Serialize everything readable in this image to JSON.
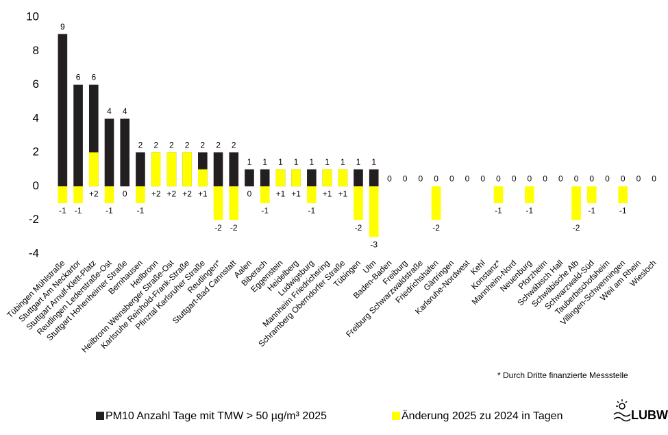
{
  "chart_data": {
    "type": "bar",
    "categories": [
      "Tübingen Mühlstraße",
      "Stuttgart Am Neckartor",
      "Stuttgart Arnulf-Klett-Platz",
      "Reutlingen Lederstraße-Ost",
      "Stuttgart Hohenheimer Straße",
      "Bernhausen",
      "Heilbronn",
      "Heilbronn Weinsberger Straße-Ost",
      "Karlsruhe Reinhold-Frank-Straße",
      "Pfinztal Karlsruher Straße",
      "Reutlingen*",
      "Stuttgart-Bad Cannstatt",
      "Aalen",
      "Biberach",
      "Eggenstein",
      "Heidelberg",
      "Ludwigsburg",
      "Mannheim Friedrichsring",
      "Schramberg Oberndorfer Straße",
      "Tübingen",
      "Ulm",
      "Baden-Baden",
      "Freiburg",
      "Freiburg Schwarzwaldstraße",
      "Friedrichshafen",
      "Gärtringen",
      "Karlsruhe-Nordwest",
      "Kehl",
      "Konstanz*",
      "Mannheim-Nord",
      "Neuenburg",
      "Pforzheim",
      "Schwäbisch Hall",
      "Schwäbische Alb",
      "Schwarzwald-Süd",
      "Tauberbischofsheim",
      "Villingen-Schwenningen",
      "Weil am Rhein",
      "Wiesloch"
    ],
    "series": [
      {
        "name": "PM10 Anzahl Tage mit TMW > 50 µg/m³ 2025",
        "color": "#231f20",
        "values": [
          9,
          6,
          6,
          4,
          4,
          2,
          2,
          2,
          2,
          2,
          2,
          2,
          1,
          1,
          1,
          1,
          1,
          1,
          1,
          1,
          1,
          0,
          0,
          0,
          0,
          0,
          0,
          0,
          0,
          0,
          0,
          0,
          0,
          0,
          0,
          0,
          0,
          0,
          0
        ]
      },
      {
        "name": "Änderung 2025 zu 2024 in Tagen",
        "color": "#ffff00",
        "values": [
          -1,
          -1,
          2,
          -1,
          0,
          -1,
          2,
          2,
          2,
          1,
          -2,
          -2,
          0,
          -1,
          1,
          1,
          -1,
          1,
          1,
          -2,
          -3,
          null,
          null,
          null,
          -2,
          null,
          null,
          null,
          -1,
          null,
          -1,
          null,
          null,
          -2,
          -1,
          null,
          -1,
          null,
          null
        ],
        "value_labels": [
          "-1",
          "-1",
          "+2",
          "-1",
          "0",
          "-1",
          "+2",
          "+2",
          "+2",
          "+1",
          "-2",
          "-2",
          "0",
          "-1",
          "+1",
          "+1",
          "-1",
          "+1",
          "+1",
          "-2",
          "-3",
          null,
          null,
          null,
          "-2",
          null,
          null,
          null,
          "-1",
          null,
          "-1",
          null,
          null,
          "-2",
          "-1",
          null,
          "-1",
          null,
          null
        ]
      }
    ],
    "ylim": [
      -4,
      10
    ],
    "yticks": [
      -4,
      -2,
      0,
      2,
      4,
      6,
      8,
      10
    ],
    "grid": false,
    "footnote": "* Durch Dritte finanzierte Messstelle",
    "logo": "LUBW"
  }
}
